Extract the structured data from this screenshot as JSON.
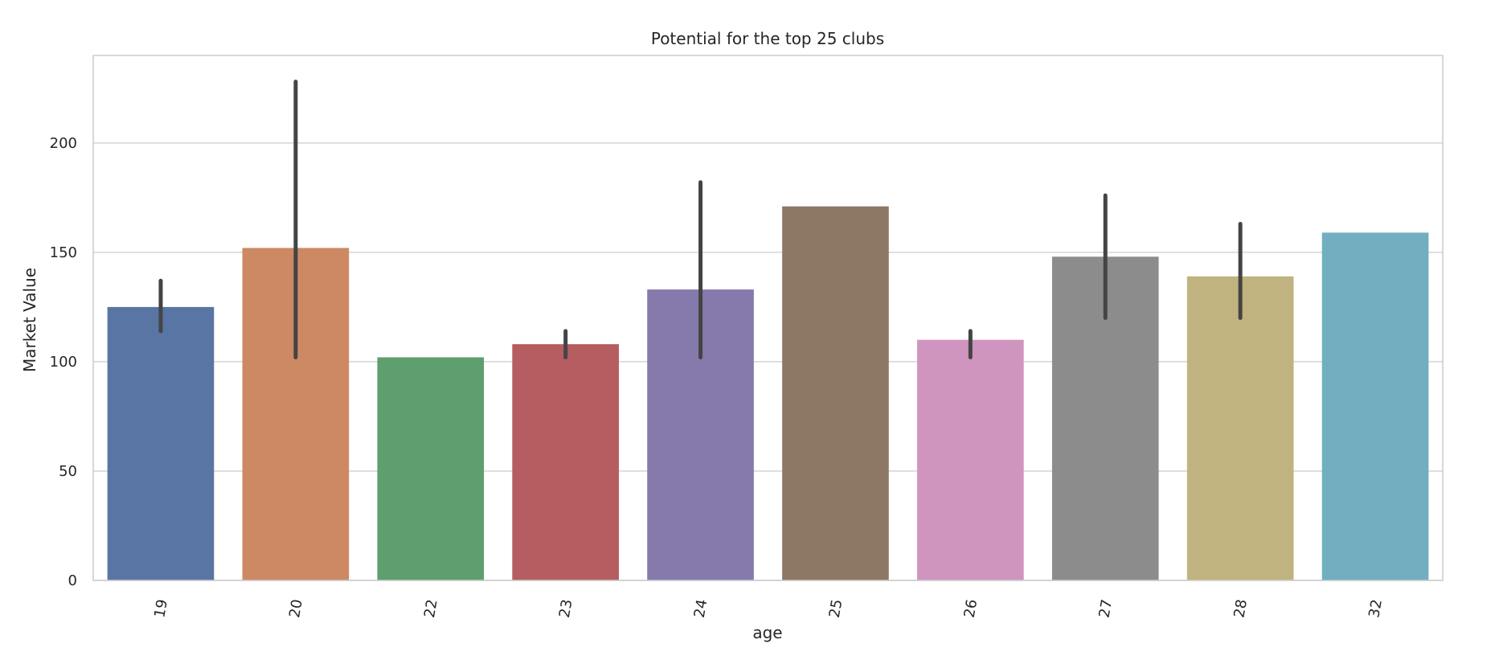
{
  "chart_data": {
    "type": "bar",
    "title": "Potential for the top 25 clubs",
    "xlabel": "age",
    "ylabel": "Market Value",
    "categories": [
      "19",
      "20",
      "22",
      "23",
      "24",
      "25",
      "26",
      "27",
      "28",
      "32"
    ],
    "values": [
      125,
      152,
      102,
      108,
      133,
      171,
      110,
      148,
      139,
      159
    ],
    "error_low": [
      114,
      102,
      null,
      102,
      102,
      null,
      102,
      120,
      120,
      null
    ],
    "error_high": [
      137,
      228,
      null,
      114,
      182,
      null,
      114,
      176,
      163,
      null
    ],
    "colors": [
      "#5975a4",
      "#cc8963",
      "#5f9e6e",
      "#b55d60",
      "#857aab",
      "#8d7866",
      "#d095bf",
      "#8c8c8c",
      "#c1b37f",
      "#71aec0"
    ],
    "ylim": [
      0,
      240
    ],
    "yticks": [
      0,
      50,
      100,
      150,
      200
    ],
    "grid": true,
    "legend": "none"
  }
}
